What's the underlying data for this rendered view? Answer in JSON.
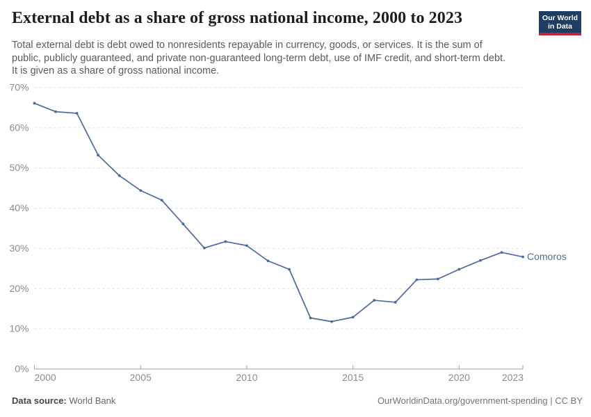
{
  "header": {
    "title": "External debt as a share of gross national income, 2000 to 2023",
    "subtitle_lines": [
      "Total external debt is debt owed to nonresidents repayable in currency, goods, or services. It is the sum of",
      "public, publicly guaranteed, and private non-guaranteed long-term debt, use of IMF credit, and short-term debt.",
      "It is given as a share of gross national income."
    ],
    "logo": {
      "line1": "Our World",
      "line2": "in Data"
    }
  },
  "chart_data": {
    "type": "line",
    "title": "External debt as a share of gross national income, 2000 to 2023",
    "x": [
      2000,
      2001,
      2002,
      2003,
      2004,
      2005,
      2006,
      2007,
      2008,
      2009,
      2010,
      2011,
      2012,
      2013,
      2014,
      2015,
      2016,
      2017,
      2018,
      2019,
      2020,
      2021,
      2022,
      2023
    ],
    "series": [
      {
        "name": "Comoros",
        "color": "#4C6A9C",
        "values": [
          66.1,
          64.0,
          63.6,
          53.2,
          48.1,
          44.4,
          42.0,
          36.1,
          30.1,
          31.7,
          30.7,
          26.9,
          24.8,
          12.7,
          11.8,
          12.9,
          17.1,
          16.6,
          22.2,
          22.4,
          24.8,
          27.0,
          29.0,
          27.9
        ]
      }
    ],
    "unit": "%",
    "xlabel": "",
    "ylabel": "",
    "xlim": [
      2000,
      2023
    ],
    "ylim": [
      0,
      70
    ],
    "yticks": [
      0,
      10,
      20,
      30,
      40,
      50,
      60,
      70
    ],
    "xticks": [
      2000,
      2005,
      2010,
      2015,
      2020,
      2023
    ],
    "grid": "horizontal-dashed",
    "legend_position": "end-of-line-label"
  },
  "footer": {
    "datasource_label": "Data source:",
    "datasource_value": "World Bank",
    "attribution": "OurWorldinData.org/government-spending | CC BY"
  },
  "colors": {
    "line": "#4C6A9C",
    "gridline": "#dcdcdc",
    "axis": "#9e9e9e",
    "tick_text": "#8c8c8c",
    "logo_bg": "#1d3d63",
    "logo_bar": "#c0273d"
  }
}
